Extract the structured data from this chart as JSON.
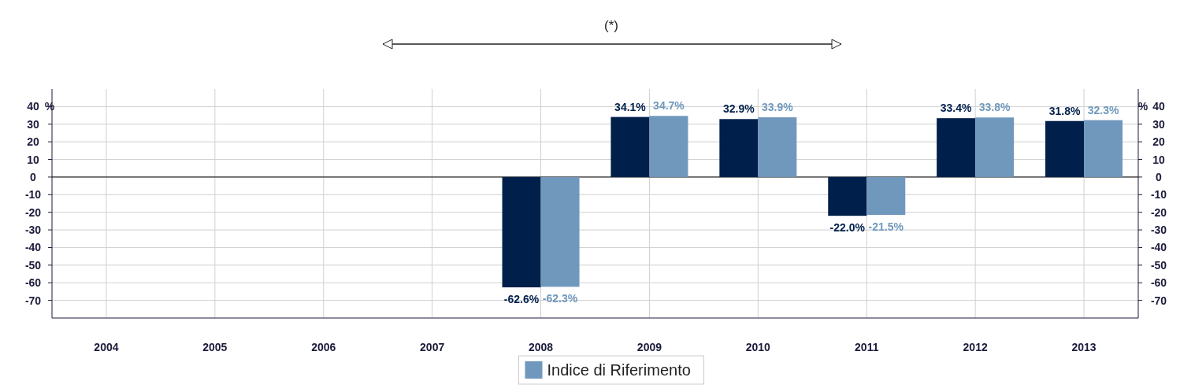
{
  "chart_data": {
    "type": "bar",
    "categories": [
      "2004",
      "2005",
      "2006",
      "2007",
      "2008",
      "2009",
      "2010",
      "2011",
      "2012",
      "2013"
    ],
    "series": [
      {
        "color": "#001f4b",
        "values": [
          null,
          null,
          null,
          null,
          -62.6,
          34.1,
          32.9,
          -22.0,
          33.4,
          31.8
        ],
        "value_labels": [
          null,
          null,
          null,
          null,
          "-62.6%",
          "34.1%",
          "32.9%",
          "-22.0%",
          "33.4%",
          "31.8%"
        ]
      },
      {
        "name": "Indice di Riferimento",
        "color": "#7098bd",
        "values": [
          null,
          null,
          null,
          null,
          -62.3,
          34.7,
          33.9,
          -21.5,
          33.8,
          32.3
        ],
        "value_labels": [
          null,
          null,
          null,
          null,
          "-62.3%",
          "34.7%",
          "33.9%",
          "-21.5%",
          "33.8%",
          "32.3%"
        ]
      }
    ],
    "ylim": [
      -80,
      50
    ],
    "yticks": [
      -70,
      -60,
      -50,
      -40,
      -30,
      -20,
      -10,
      0,
      10,
      20,
      30,
      40
    ],
    "y2lim": [
      -80,
      50
    ],
    "y2ticks": [
      -70,
      -60,
      -50,
      -40,
      -30,
      -20,
      -10,
      0,
      10,
      20,
      30,
      40
    ],
    "ylabel": "%",
    "y2label": "%",
    "grid": true,
    "legend": "bottom",
    "annotations": [
      "(*)"
    ]
  }
}
